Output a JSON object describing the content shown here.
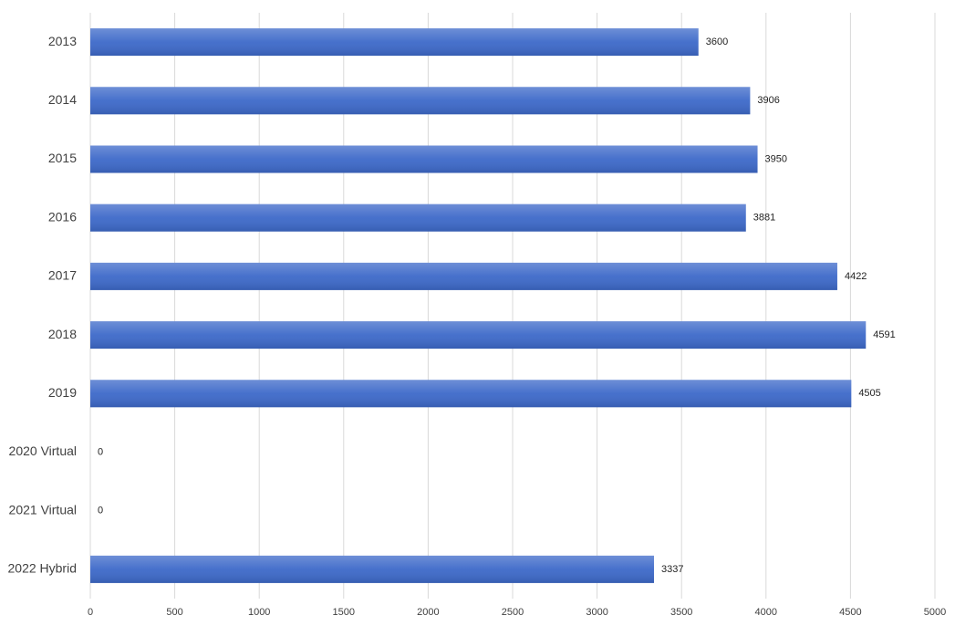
{
  "chart_data": {
    "type": "bar",
    "orientation": "horizontal",
    "categories": [
      "2013",
      "2014",
      "2015",
      "2016",
      "2017",
      "2018",
      "2019",
      "2020 Virtual",
      "2021 Virtual",
      "2022 Hybrid"
    ],
    "values": [
      3600,
      3906,
      3950,
      3881,
      4422,
      4591,
      4505,
      0,
      0,
      3337
    ],
    "color": "#3d69c9",
    "xlim": [
      0,
      5000
    ],
    "xticks": [
      0,
      500,
      1000,
      1500,
      2000,
      2500,
      3000,
      3500,
      4000,
      4500,
      5000
    ],
    "grid": true
  }
}
